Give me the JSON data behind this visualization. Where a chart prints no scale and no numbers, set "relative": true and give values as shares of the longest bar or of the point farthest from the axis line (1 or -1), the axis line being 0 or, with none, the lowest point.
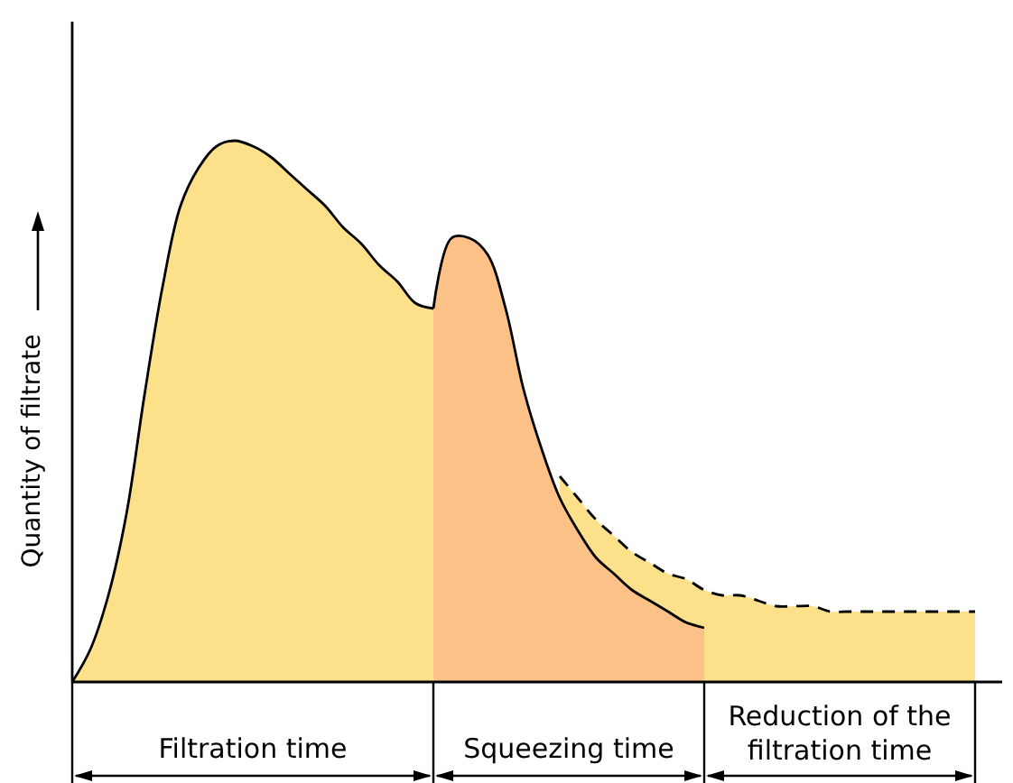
{
  "chart_data": {
    "type": "area",
    "relative": true,
    "ylabel": "Quantity of filtrate",
    "categories": [
      null,
      null,
      null,
      null,
      null,
      null,
      null,
      null,
      null,
      null,
      null,
      null,
      null,
      null,
      null,
      null,
      null,
      null,
      null,
      null,
      null,
      null,
      null,
      null,
      null,
      null,
      null,
      null,
      null,
      null,
      null,
      null,
      null,
      null,
      null,
      null,
      null,
      null,
      null,
      null,
      null,
      null,
      null,
      null,
      null,
      null,
      null,
      null,
      null,
      null,
      null
    ],
    "series": [
      {
        "color": "#fde08a",
        "values": [
          0,
          0.06,
          0.16,
          0.31,
          0.53,
          0.73,
          0.88,
          0.95,
          0.99,
          1,
          0.99,
          0.97,
          0.94,
          0.91,
          0.88,
          0.84,
          0.81,
          0.77,
          0.74,
          0.7,
          0.69,
          null,
          null,
          null,
          null,
          null,
          null,
          null,
          null,
          null,
          null,
          null,
          null,
          null,
          null,
          null,
          null,
          null,
          null,
          null,
          null,
          null,
          null,
          null,
          null,
          null,
          null,
          null,
          null,
          null,
          null
        ]
      },
      {
        "color": "#fde08a",
        "line_style": "dashed",
        "values": [
          null,
          null,
          null,
          null,
          null,
          null,
          null,
          null,
          null,
          null,
          null,
          null,
          null,
          null,
          null,
          null,
          null,
          null,
          null,
          null,
          null,
          null,
          null,
          null,
          null,
          null,
          null,
          0.38,
          0.34,
          0.3,
          0.27,
          0.24,
          0.22,
          0.2,
          0.19,
          0.17,
          0.16,
          0.16,
          0.15,
          0.14,
          0.14,
          0.14,
          0.13,
          0.13,
          0.13,
          0.13,
          0.13,
          0.13,
          0.13,
          0.13,
          0.13
        ]
      },
      {
        "color": "#fcc187",
        "values": [
          null,
          null,
          null,
          null,
          null,
          null,
          null,
          null,
          null,
          null,
          null,
          null,
          null,
          null,
          null,
          null,
          null,
          null,
          null,
          null,
          0.69,
          0.82,
          0.82,
          0.79,
          0.69,
          0.54,
          0.43,
          0.34,
          0.28,
          0.23,
          0.2,
          0.17,
          0.15,
          0.13,
          0.11,
          0.1,
          null,
          null,
          null,
          null,
          null,
          null,
          null,
          null,
          null,
          null,
          null,
          null,
          null,
          null,
          null
        ]
      }
    ],
    "annotations": [
      "Filtration time",
      "Squeezing time",
      "Reduction of the filtration time"
    ]
  }
}
